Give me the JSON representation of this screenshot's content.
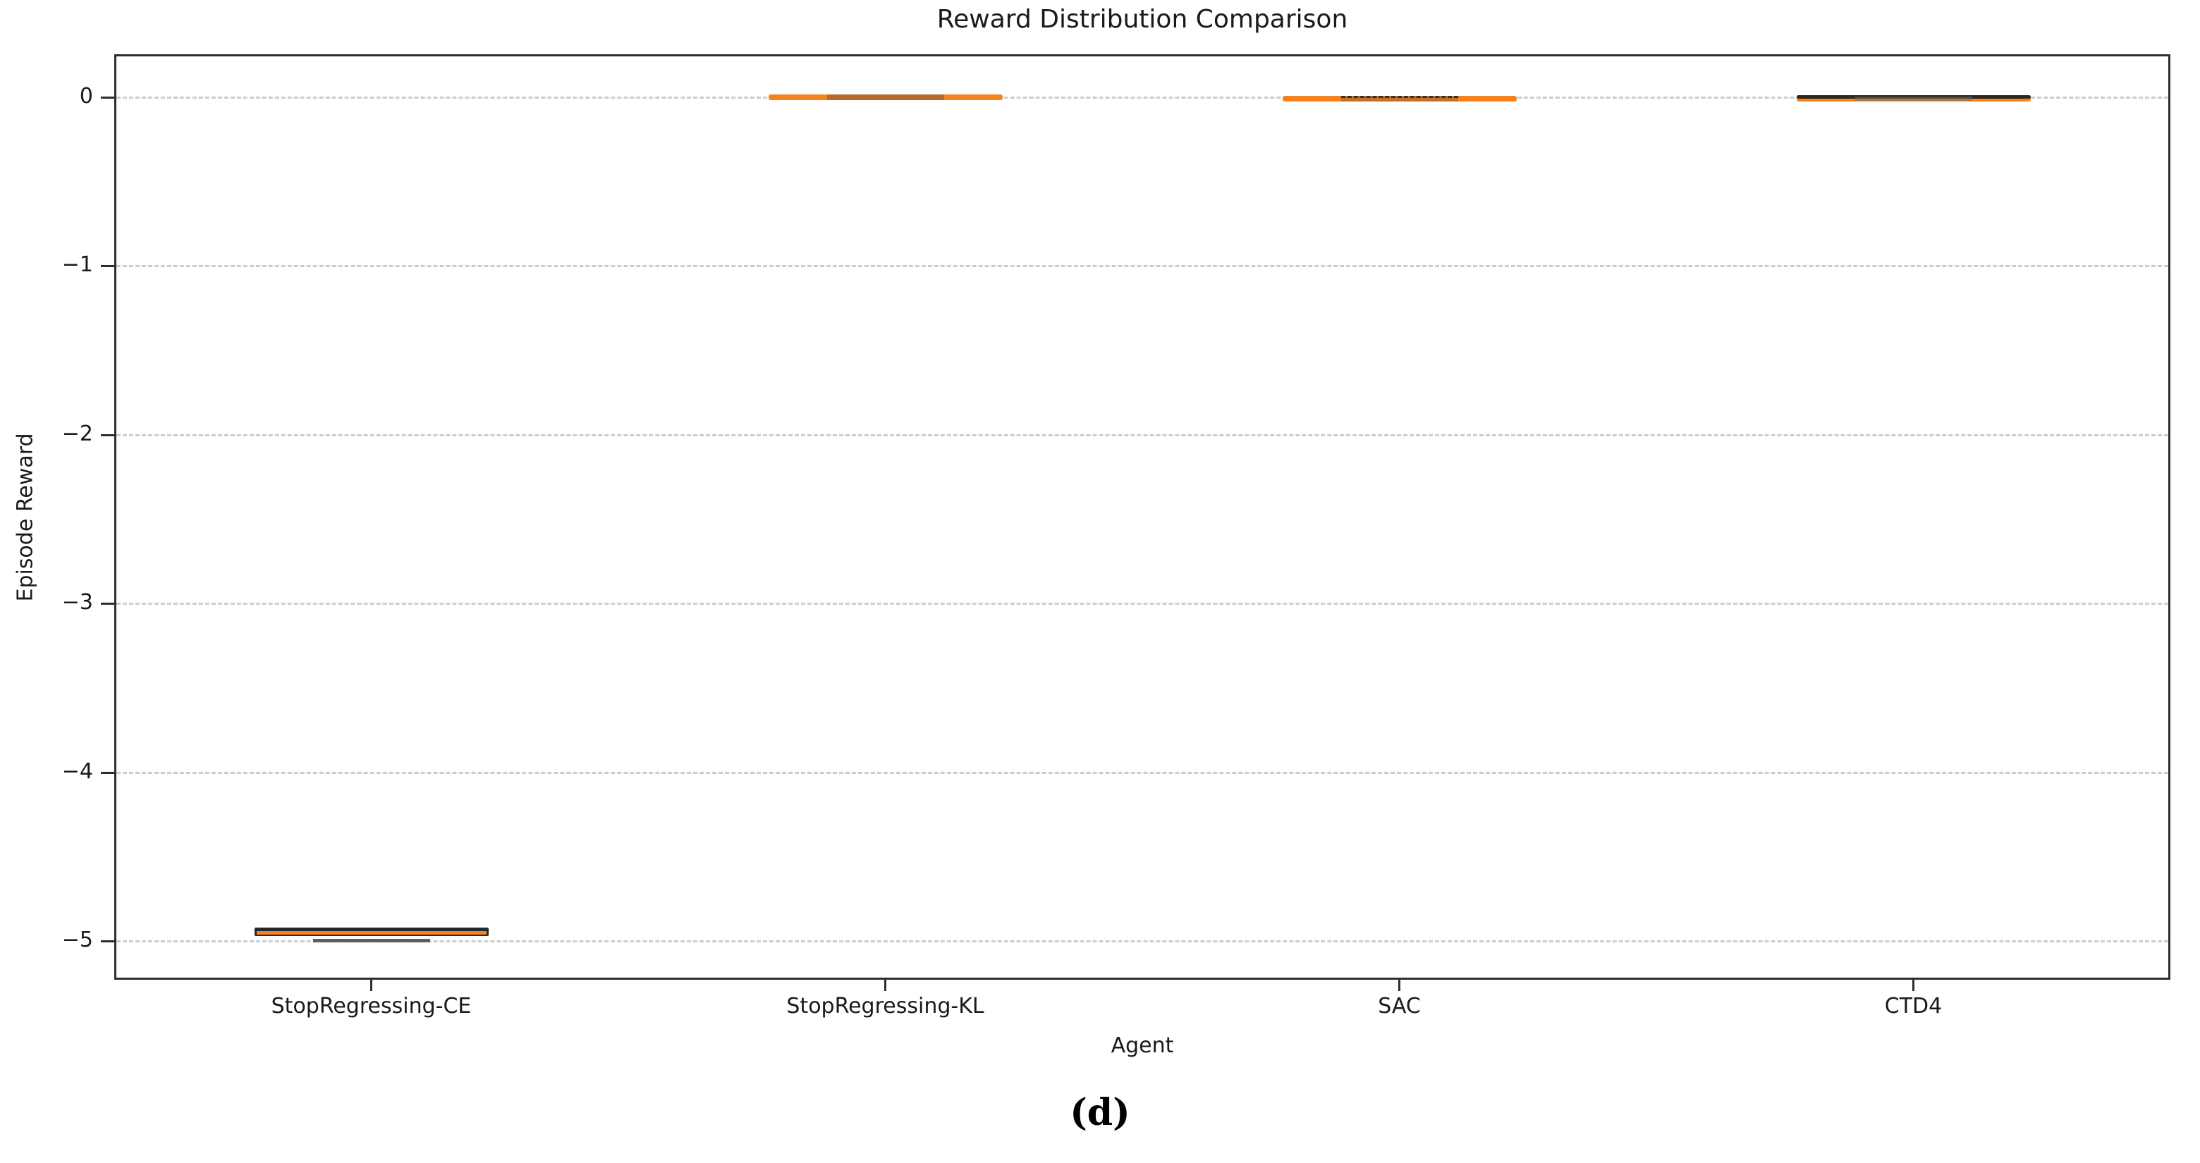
{
  "caption": {
    "label": "(d)"
  },
  "chart_data": {
    "type": "box",
    "title": "Reward Distribution Comparison",
    "xlabel": "Agent",
    "ylabel": "Episode Reward",
    "categories": [
      "StopRegressing-CE",
      "StopRegressing-KL",
      "SAC",
      "CTD4"
    ],
    "series": [
      {
        "label": "StopRegressing-CE",
        "stats": {
          "whislo": -5.0,
          "q1": -4.97,
          "med": -4.95,
          "q3": -4.92,
          "whishi": -4.91
        },
        "style": "dark-box-orange-median-gray-cap"
      },
      {
        "label": "StopRegressing-KL",
        "stats": {
          "whislo": -0.01,
          "q1": -0.005,
          "med": 0.0,
          "q3": 0.005,
          "whishi": 0.01
        },
        "style": "flat-orange-line"
      },
      {
        "label": "SAC",
        "stats": {
          "whislo": -0.02,
          "q1": -0.015,
          "med": -0.01,
          "q3": -0.005,
          "whishi": 0.0
        },
        "style": "flat-orange-line-dashed-dark-edge"
      },
      {
        "label": "CTD4",
        "stats": {
          "whislo": -0.02,
          "q1": -0.015,
          "med": -0.01,
          "q3": -0.005,
          "whishi": 0.0
        },
        "style": "flat-dark-over-orange"
      }
    ],
    "yticks": {
      "labels": [
        "0",
        "−1",
        "−2",
        "−3",
        "−4",
        "−5"
      ],
      "values": [
        0,
        -1,
        -2,
        -3,
        -4,
        -5
      ]
    },
    "ylim": [
      -5.23,
      0.25
    ],
    "grid": {
      "axis": "y",
      "style": "dashed",
      "color": "#cdcdcd"
    },
    "legend": "none",
    "colors": {
      "median": "#f5821f",
      "box_edge": "#23292f",
      "cap": "#4f4f4f",
      "spine": "#2e2e2e",
      "text": "#1a1a1a",
      "grid": "#cdcdcd"
    }
  }
}
